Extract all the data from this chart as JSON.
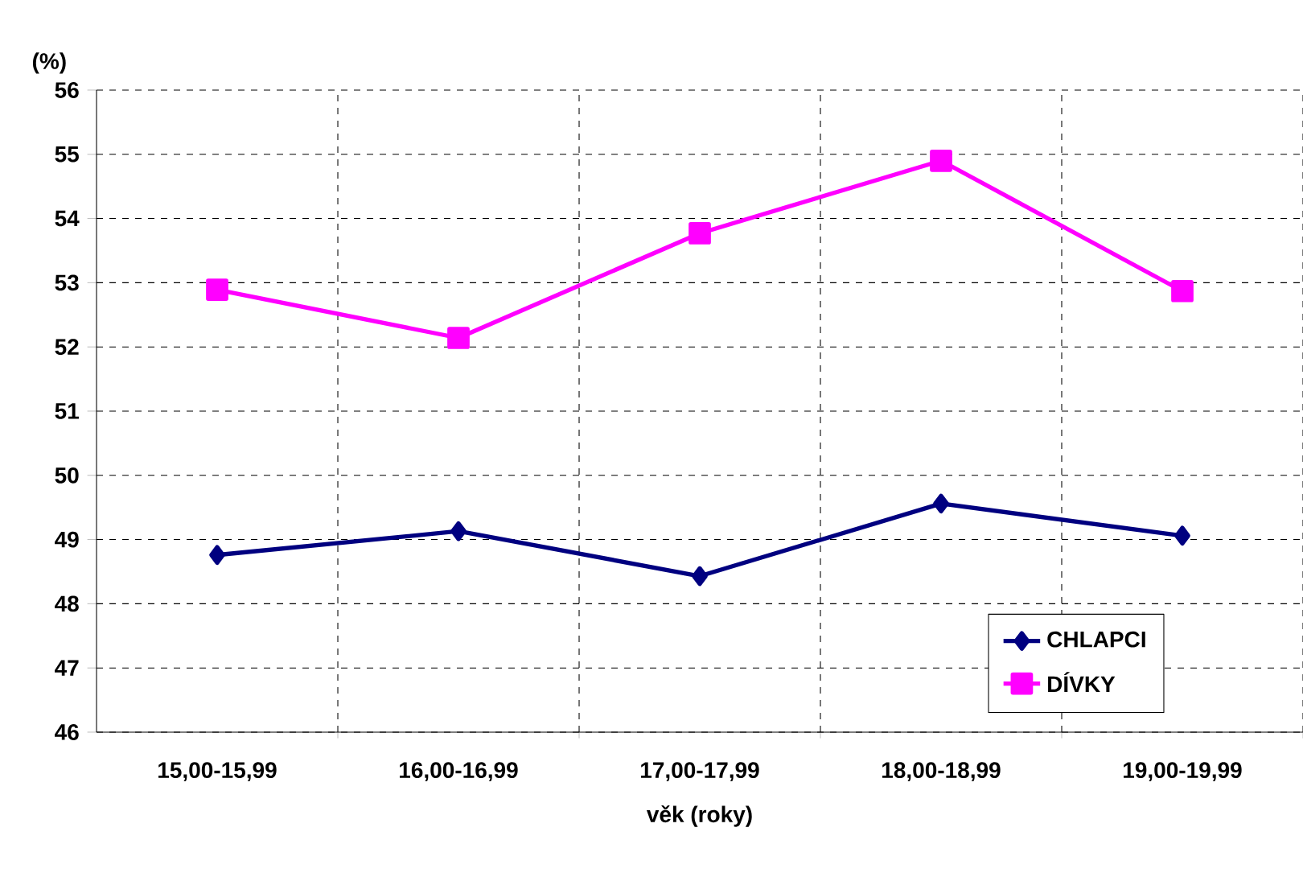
{
  "chart_data": {
    "type": "line",
    "ylabel": "(%)",
    "xlabel": "věk (roky)",
    "categories": [
      "15,00-15,99",
      "16,00-16,99",
      "17,00-17,99",
      "18,00-18,99",
      "19,00-19,99"
    ],
    "series": [
      {
        "name": "CHLAPCI",
        "color": "#000080",
        "marker": "diamond",
        "values": [
          48.76,
          49.13,
          48.43,
          49.56,
          49.06
        ]
      },
      {
        "name": "DÍVKY",
        "color": "#ff00ff",
        "marker": "square",
        "values": [
          52.89,
          52.14,
          53.77,
          54.9,
          52.87
        ]
      }
    ],
    "ylim": [
      46,
      56
    ],
    "yticks": [
      46,
      47,
      48,
      49,
      50,
      51,
      52,
      53,
      54,
      55,
      56
    ],
    "grid": true,
    "legend": "bottom right"
  }
}
